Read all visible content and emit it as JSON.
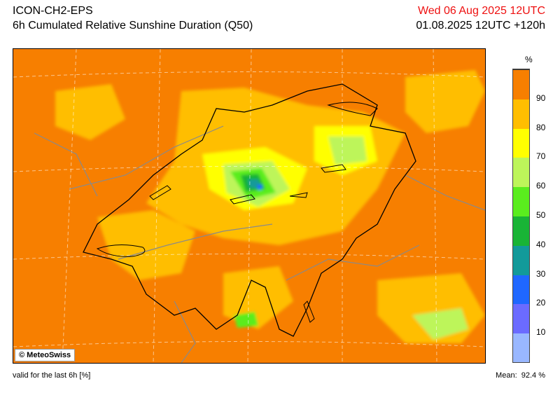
{
  "header": {
    "model": "ICON-CH2-EPS",
    "product": "6h Cumulated Relative Sunshine Duration (Q50)",
    "valid_time": "Wed 06 Aug 2025 12UTC",
    "run_info": "01.08.2025 12UTC +120h"
  },
  "legend": {
    "unit": "%",
    "levels": [
      {
        "label": "10",
        "color": "#99b7ff"
      },
      {
        "label": "20",
        "color": "#6b6bff"
      },
      {
        "label": "30",
        "color": "#1f67ff"
      },
      {
        "label": "40",
        "color": "#129a9a"
      },
      {
        "label": "50",
        "color": "#19b436"
      },
      {
        "label": "60",
        "color": "#5aed1e"
      },
      {
        "label": "70",
        "color": "#bdf55a"
      },
      {
        "label": "80",
        "color": "#ffff00"
      },
      {
        "label": "90",
        "color": "#ffbe00"
      },
      {
        "label": "",
        "color": "#f77f00"
      }
    ]
  },
  "footer": {
    "validity": "valid for the last 6h [%]",
    "mean_label": "Mean:",
    "mean_value": "92.4 %"
  },
  "credit": "© MeteoSwiss"
}
